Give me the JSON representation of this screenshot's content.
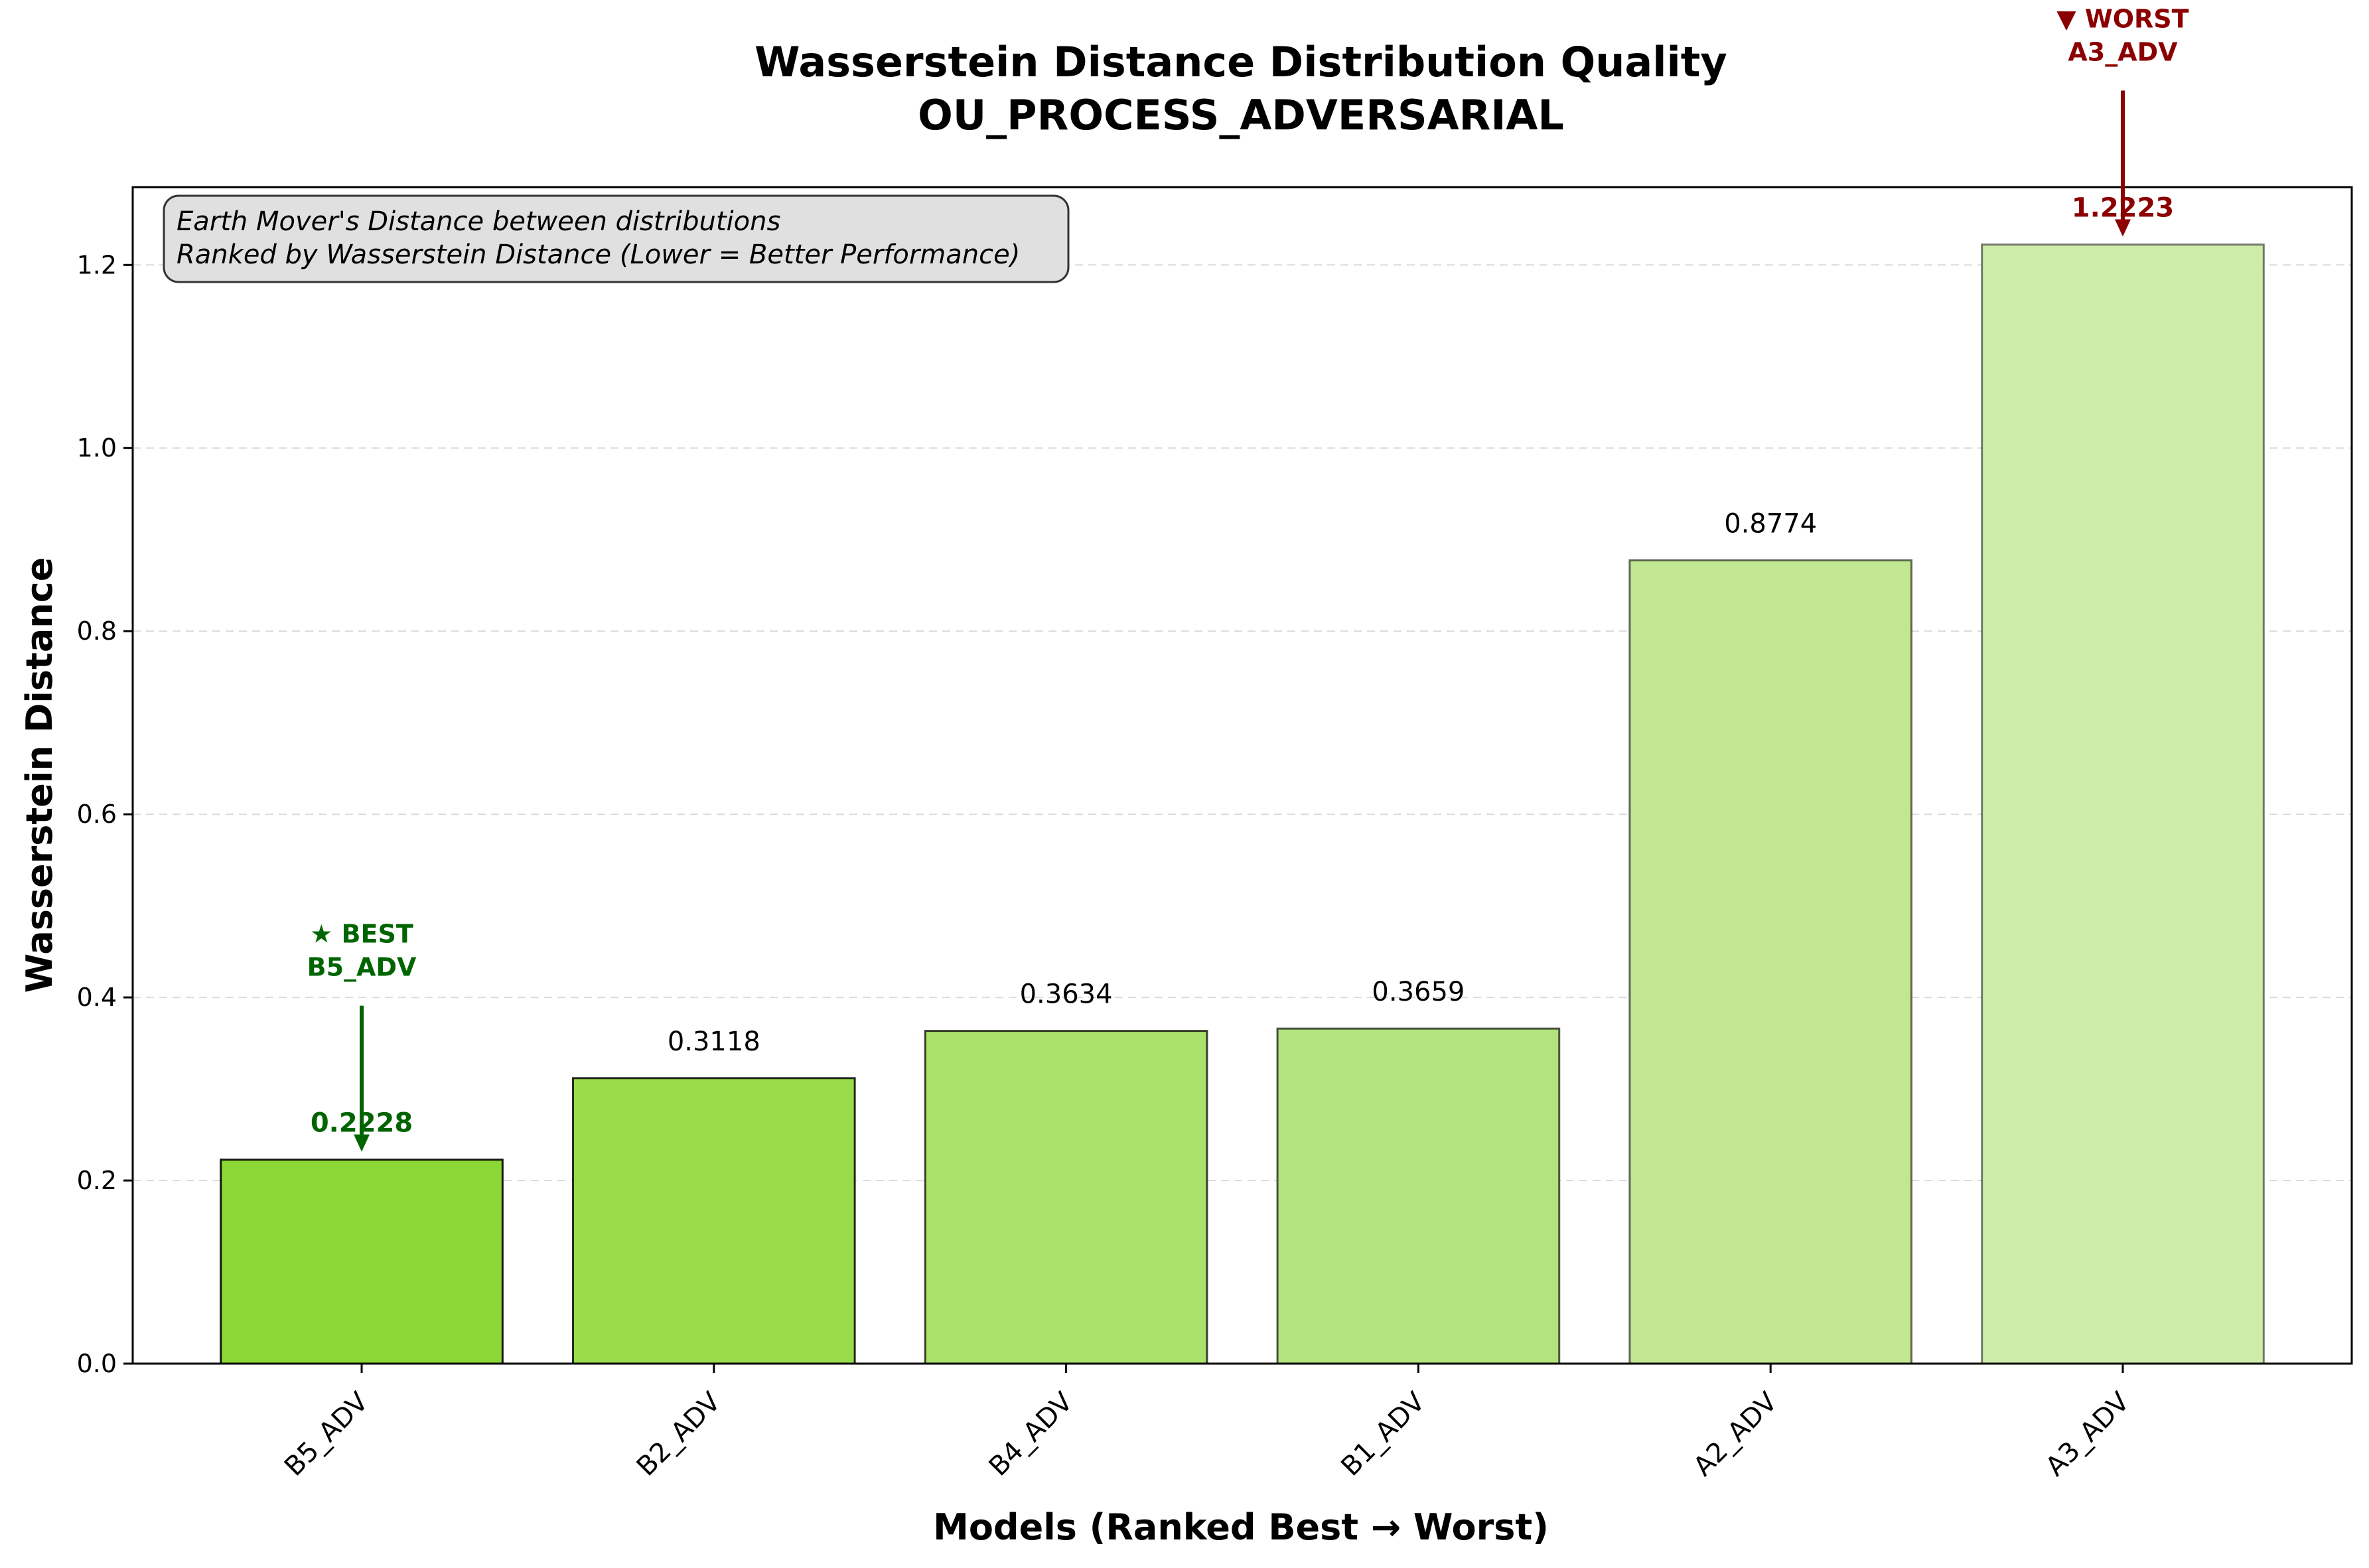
{
  "chart_data": {
    "type": "bar",
    "title": "Wasserstein Distance Distribution Quality",
    "subtitle": "OU_PROCESS_ADVERSARIAL",
    "xlabel": "Models (Ranked Best → Worst)",
    "ylabel": "Wasserstein Distance",
    "categories": [
      "B5_ADV",
      "B2_ADV",
      "B4_ADV",
      "B1_ADV",
      "A2_ADV",
      "A3_ADV"
    ],
    "values": [
      0.2228,
      0.3118,
      0.3634,
      0.3659,
      0.8774,
      1.2223
    ],
    "value_labels": [
      "0.2228",
      "0.3118",
      "0.3634",
      "0.3659",
      "0.8774",
      "1.2223"
    ],
    "bar_colors": [
      "#8cd636",
      "#9adb4a",
      "#aae26a",
      "#b2e47e",
      "#c2e792",
      "#cfecab"
    ],
    "ylim": [
      0,
      1.285
    ],
    "yticks": [
      0.0,
      0.2,
      0.4,
      0.6,
      0.8,
      1.0,
      1.2
    ],
    "ytick_labels": [
      "0.0",
      "0.2",
      "0.4",
      "0.6",
      "0.8",
      "1.0",
      "1.2"
    ],
    "grid": "horizontal dashed",
    "info_box": {
      "line1": "Earth Mover's Distance between distributions",
      "line2": "Ranked by Wasserstein Distance (Lower = Better Performance)",
      "placement": "top-left"
    },
    "best": {
      "index": 0,
      "label_line1": "★ BEST",
      "label_line2": "B5_ADV",
      "color": "#006400"
    },
    "worst": {
      "index": 5,
      "label_line1": "▼ WORST",
      "label_line2": "A3_ADV",
      "color": "#8b0000"
    }
  }
}
